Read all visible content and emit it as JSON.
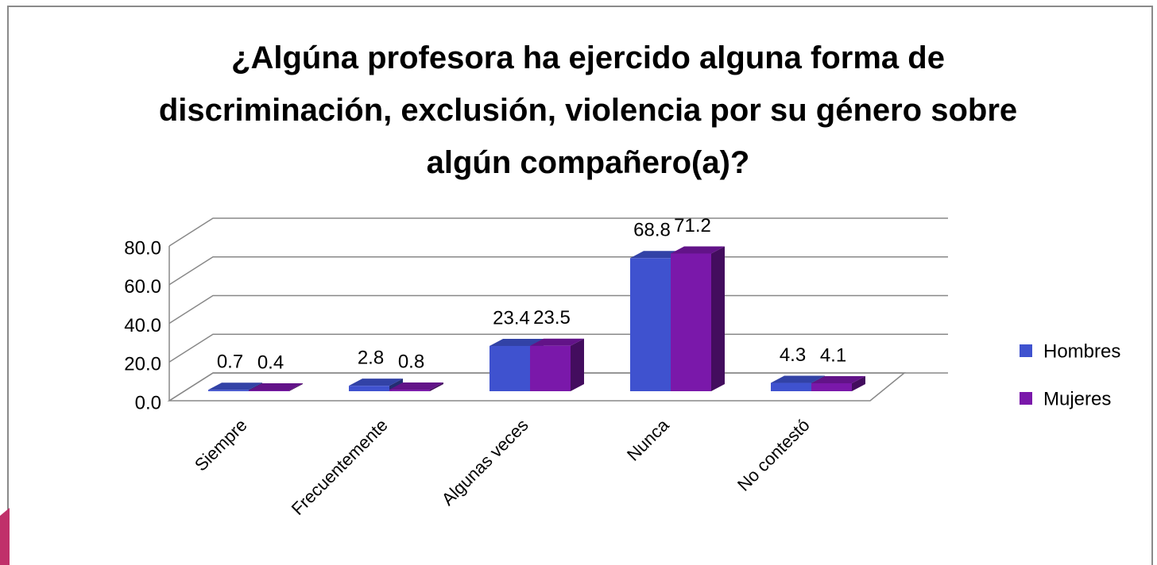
{
  "chart_data": {
    "type": "bar3d",
    "title": "¿Algúna profesora ha ejercido alguna forma de discriminación, exclusión, violencia por su género sobre algún compañero(a)?",
    "categories": [
      "Siempre",
      "Frecuentemente",
      "Algunas veces",
      "Nunca",
      "No contestó"
    ],
    "series": [
      {
        "name": "Hombres",
        "color": "#3f52cf",
        "values": [
          0.7,
          2.8,
          23.4,
          68.8,
          4.3
        ]
      },
      {
        "name": "Mujeres",
        "color": "#7a18aa",
        "values": [
          0.4,
          0.8,
          23.5,
          71.2,
          4.1
        ]
      }
    ],
    "ylim": [
      0,
      80
    ],
    "yticks": [
      {
        "value": 0,
        "label": "0.0"
      },
      {
        "value": 20,
        "label": "20.0"
      },
      {
        "value": 40,
        "label": "40.0"
      },
      {
        "value": 60,
        "label": "60.0"
      },
      {
        "value": 80,
        "label": "80.0"
      }
    ],
    "grid": true,
    "legend": "right"
  }
}
